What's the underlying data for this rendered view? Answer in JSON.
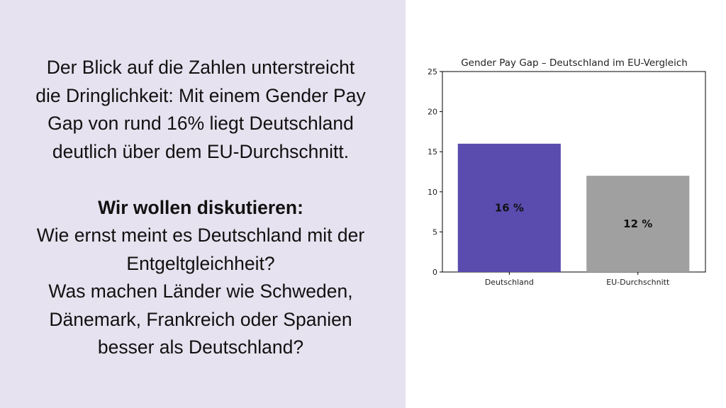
{
  "left_text": {
    "paragraph1": [
      "Der Blick auf die Zahlen unterstreicht",
      "die Dringlichkeit: Mit einem Gender Pay",
      "Gap von rund 16% liegt Deutschland",
      "deutlich über dem EU-Durchschnitt."
    ],
    "heading": "Wir wollen diskutieren:",
    "questions": [
      "Wie ernst meint es Deutschland mit der",
      "Entgeltgleichheit?",
      "Was machen Länder wie Schweden,",
      "Dänemark, Frankreich oder Spanien",
      "besser als Deutschland?"
    ]
  },
  "colors": {
    "left_background": "#e6e2ef",
    "bar_deutschland": "#5a4baf",
    "bar_eu": "#a0a0a0"
  },
  "chart_data": {
    "type": "bar",
    "title": "Gender Pay Gap – Deutschland im EU-Vergleich",
    "categories": [
      "Deutschland",
      "EU-Durchschnitt"
    ],
    "values": [
      16,
      12
    ],
    "data_labels": [
      "16 %",
      "12 %"
    ],
    "colors": [
      "#5a4baf",
      "#a0a0a0"
    ],
    "yticks": [
      "0",
      "5",
      "10",
      "15",
      "20",
      "25"
    ],
    "ylim": [
      0,
      25
    ],
    "xlabel": "",
    "ylabel": "",
    "grid": false
  }
}
